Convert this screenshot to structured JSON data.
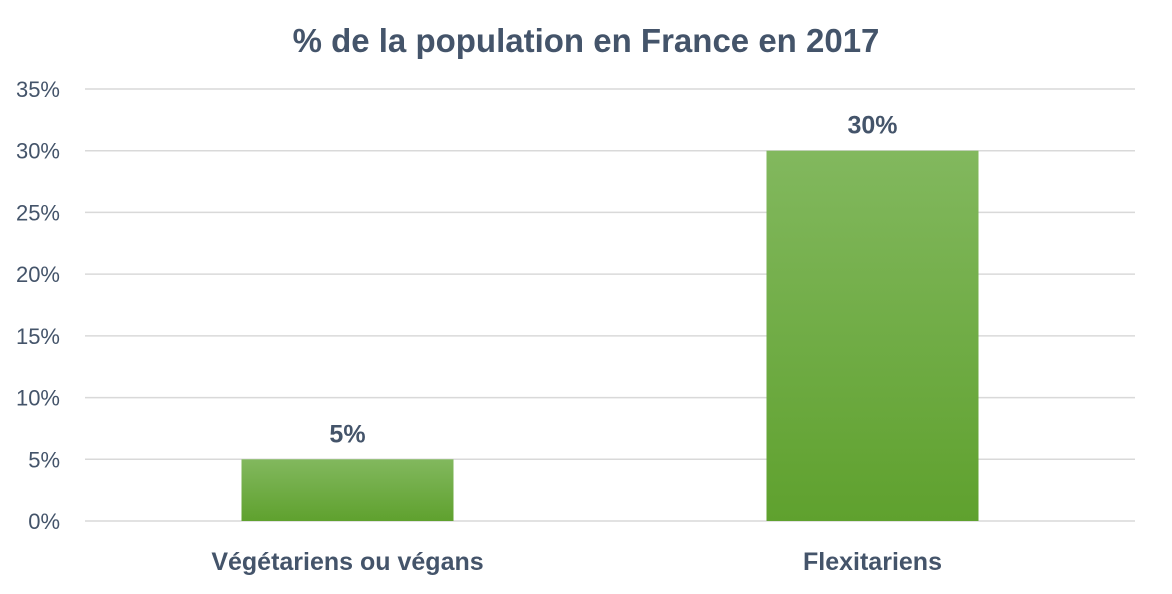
{
  "chart_data": {
    "type": "bar",
    "title": "% de la population en France en 2017",
    "xlabel": "",
    "ylabel": "",
    "categories": [
      "Végétariens ou végans",
      "Flexitariens"
    ],
    "values": [
      5,
      30
    ],
    "data_labels": [
      "5%",
      "30%"
    ],
    "ylim": [
      0,
      35
    ],
    "yticks": [
      0,
      5,
      10,
      15,
      20,
      25,
      30,
      35
    ],
    "ytick_labels": [
      "0%",
      "5%",
      "10%",
      "15%",
      "20%",
      "25%",
      "30%",
      "35%"
    ],
    "grid": true,
    "legend": "none",
    "colors": {
      "bar_top": "#82b85e",
      "bar_bottom": "#5fa12e",
      "text": "#44546a",
      "grid": "#d9d9d9"
    }
  }
}
